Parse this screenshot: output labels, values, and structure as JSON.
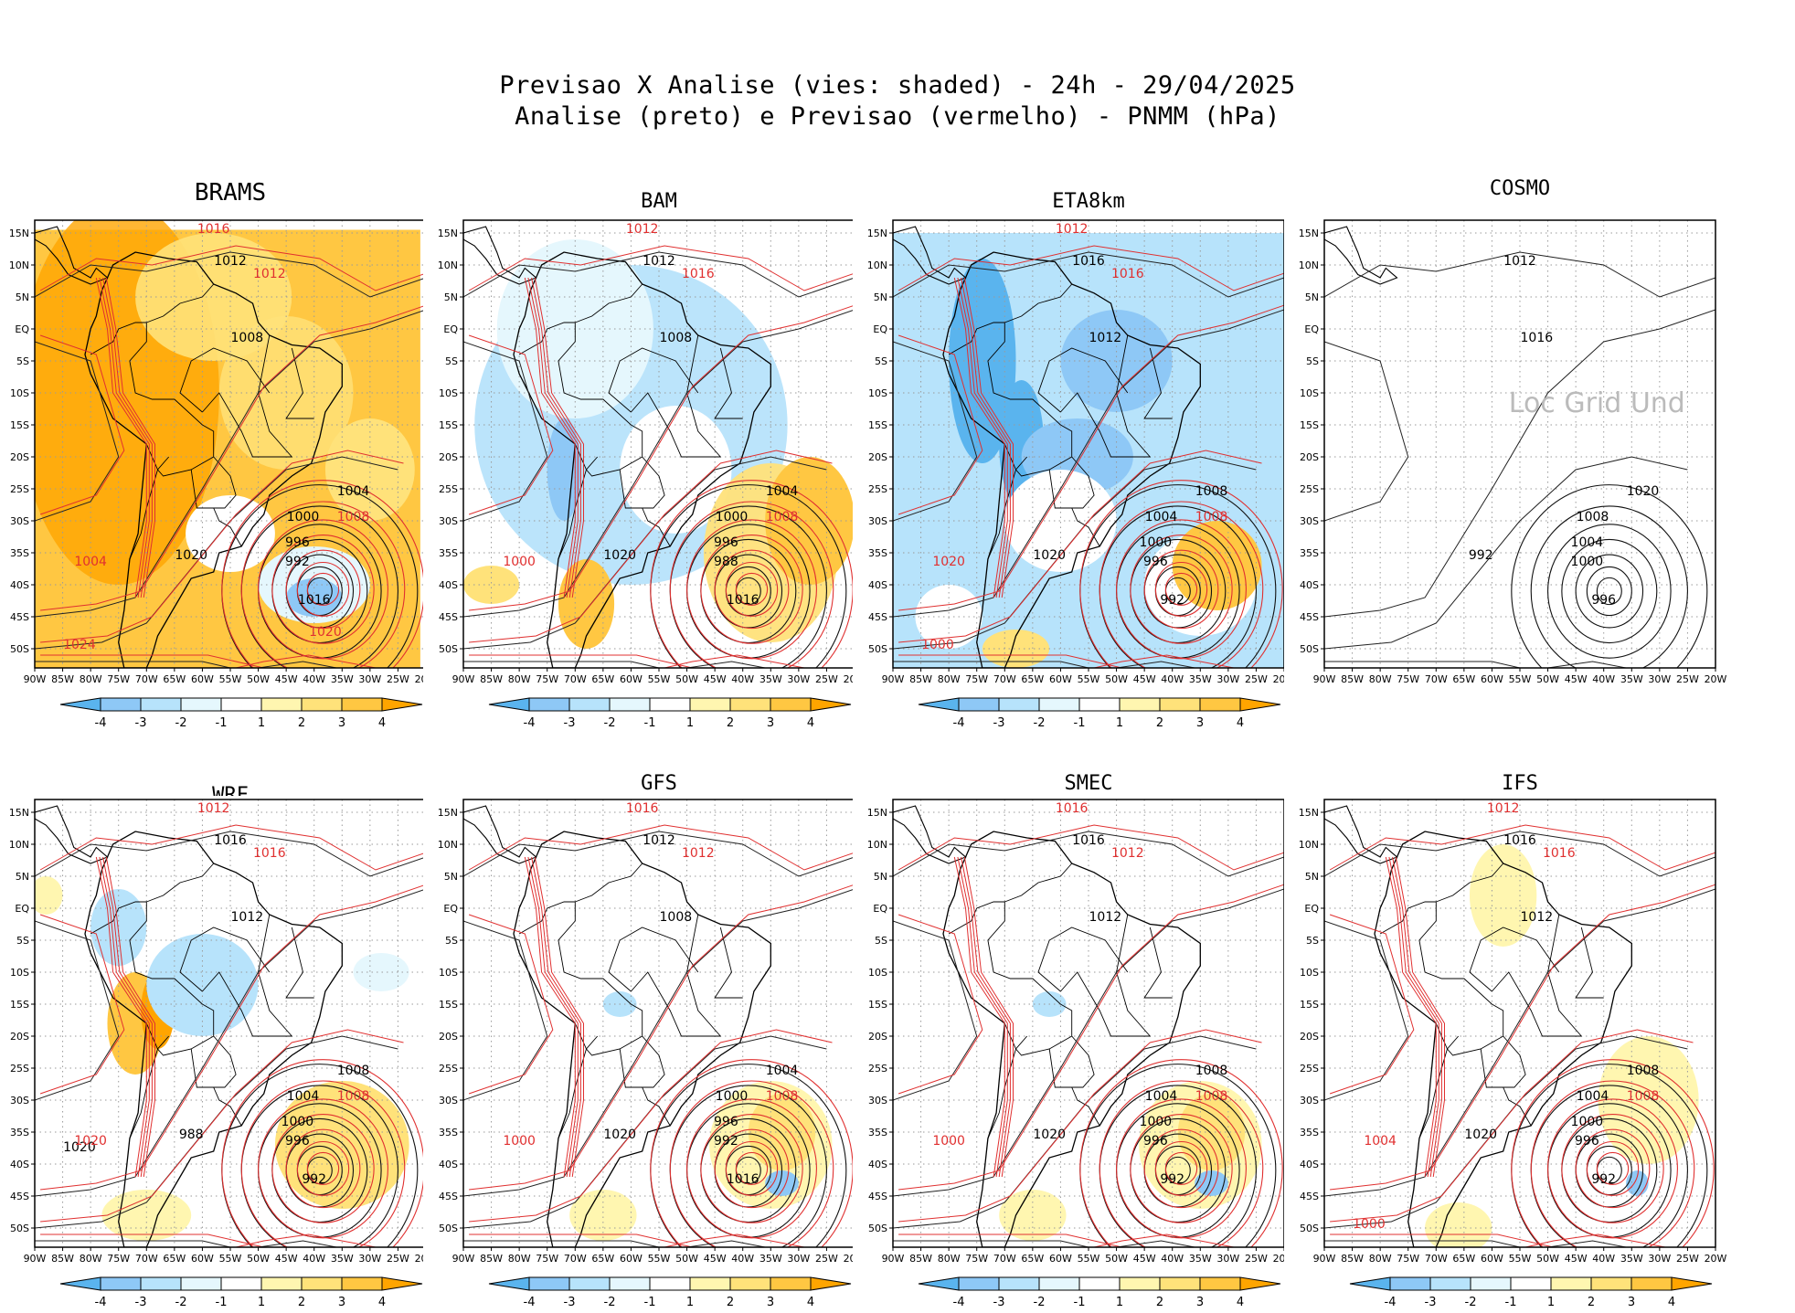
{
  "header": {
    "line1": "Previsao X Analise (vies: shaded) - 24h - 29/04/2025",
    "line2": "Analise (preto) e Previsao (vermelho) - PNMM (hPa)"
  },
  "lat_labels": [
    "15N",
    "10N",
    "5N",
    "EQ",
    "5S",
    "10S",
    "15S",
    "20S",
    "25S",
    "30S",
    "35S",
    "40S",
    "45S",
    "50S"
  ],
  "lon_labels": [
    "90W",
    "85W",
    "80W",
    "75W",
    "70W",
    "65W",
    "60W",
    "55W",
    "50W",
    "45W",
    "40W",
    "35W",
    "30W",
    "25W",
    "20W"
  ],
  "colorbar": {
    "ticks": [
      "-4",
      "-3",
      "-2",
      "-1",
      "1",
      "2",
      "3",
      "4"
    ],
    "colors": [
      "#5ab4ee",
      "#8ec8f6",
      "#b7e3fb",
      "#e5f7fd",
      "#ffffff",
      "#fff6b0",
      "#ffe27a",
      "#ffc742",
      "#ffa500"
    ]
  },
  "overlay_text": "Loc Grid Und",
  "panels": [
    {
      "name": "BRAMS",
      "bias": "warm",
      "labels_black": [
        "1012",
        "1008",
        "1004",
        "1000",
        "996",
        "992",
        "1016",
        "1020"
      ],
      "labels_red": [
        "1016",
        "1012",
        "1008",
        "1004",
        "1024",
        "1020"
      ]
    },
    {
      "name": "BAM",
      "bias": "cool",
      "labels_black": [
        "1012",
        "1008",
        "1004",
        "1000",
        "996",
        "988",
        "1016",
        "1020"
      ],
      "labels_red": [
        "1012",
        "1016",
        "1008",
        "1000"
      ]
    },
    {
      "name": "ETA8km",
      "bias": "coolstrong",
      "labels_black": [
        "1016",
        "1012",
        "1008",
        "1004",
        "1000",
        "996",
        "992",
        "1020"
      ],
      "labels_red": [
        "1012",
        "1016",
        "1008",
        "1020",
        "1000"
      ]
    },
    {
      "name": "COSMO",
      "bias": "none",
      "labels_black": [
        "1012",
        "1016",
        "1020",
        "1008",
        "1004",
        "1000",
        "996",
        "992"
      ],
      "labels_red": []
    },
    {
      "name": "WRF",
      "bias": "mixed",
      "labels_black": [
        "1016",
        "1012",
        "1008",
        "1004",
        "1000",
        "996",
        "992",
        "988",
        "1020"
      ],
      "labels_red": [
        "1012",
        "1016",
        "1008",
        "1020"
      ]
    },
    {
      "name": "GFS",
      "bias": "light",
      "labels_black": [
        "1012",
        "1008",
        "1004",
        "1000",
        "996",
        "992",
        "1016",
        "1020"
      ],
      "labels_red": [
        "1016",
        "1012",
        "1008",
        "1000"
      ]
    },
    {
      "name": "SMEC",
      "bias": "light",
      "labels_black": [
        "1016",
        "1012",
        "1008",
        "1004",
        "1000",
        "996",
        "992",
        "1020"
      ],
      "labels_red": [
        "1016",
        "1012",
        "1008",
        "1000"
      ]
    },
    {
      "name": "IFS",
      "bias": "light2",
      "labels_black": [
        "1016",
        "1012",
        "1008",
        "1004",
        "1000",
        "996",
        "992",
        "1020"
      ],
      "labels_red": [
        "1012",
        "1016",
        "1008",
        "1004",
        "1000"
      ]
    }
  ]
}
